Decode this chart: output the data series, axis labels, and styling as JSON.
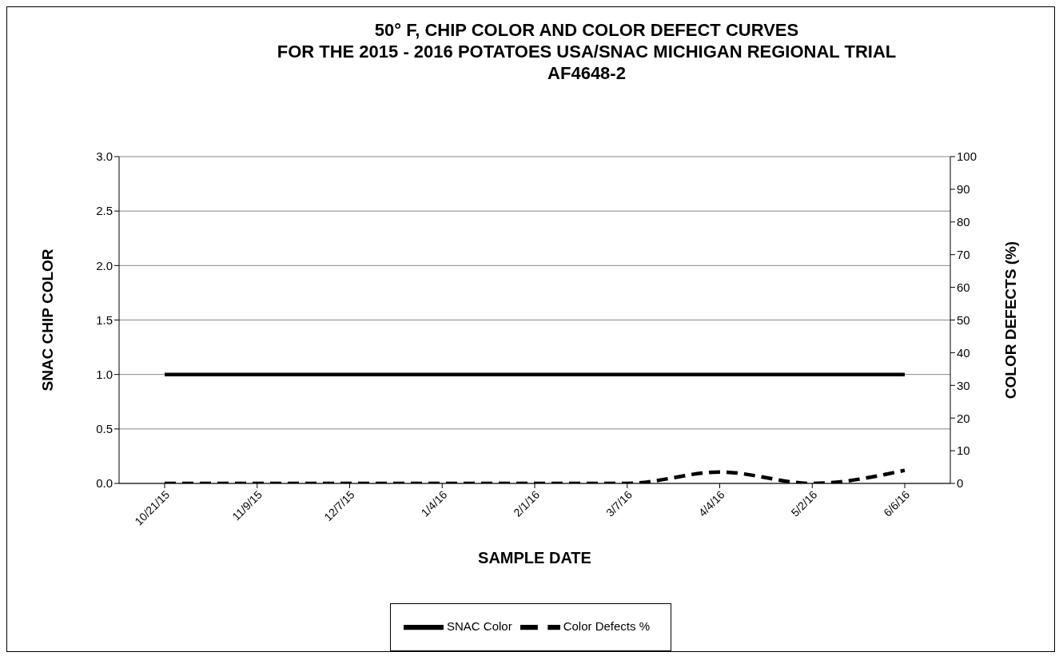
{
  "chart_data": {
    "type": "line",
    "title": "50° F, CHIP COLOR AND COLOR DEFECT CURVES\nFOR THE 2015 - 2016 POTATOES USA/SNAC MICHIGAN REGIONAL TRIAL\nAF4648-2",
    "xlabel": "SAMPLE DATE",
    "ylabel": "SNAC CHIP COLOR",
    "y2label": "COLOR DEFECTS (%)",
    "categories": [
      "10/21/15",
      "11/9/15",
      "12/7/15",
      "1/4/16",
      "2/1/16",
      "3/7/16",
      "4/4/16",
      "5/2/16",
      "6/6/16"
    ],
    "series": [
      {
        "name": "SNAC Color",
        "color": "#000000",
        "line_style": "solid",
        "values": [
          1,
          1,
          1,
          1,
          1,
          1,
          1,
          1,
          1
        ]
      },
      {
        "name": "Color Defects %",
        "color": "#000000",
        "line_style": "dashed",
        "axis": "y2",
        "values": [
          0,
          0,
          0,
          0,
          0,
          0,
          3.5,
          0,
          4
        ]
      }
    ],
    "ylim": [
      0,
      3
    ],
    "yticks": [
      {
        "value": 0,
        "label": "0.0"
      },
      0.5,
      {
        "value": 1,
        "label": "1.0"
      },
      1.5,
      {
        "value": 2,
        "label": "2.0"
      },
      2.5,
      {
        "value": 3,
        "label": "3.0"
      }
    ],
    "y2lim": [
      0,
      100
    ],
    "y2ticks": [
      0,
      10,
      20,
      30,
      40,
      50,
      60,
      70,
      80,
      90,
      100
    ],
    "grid": "y",
    "legend": "bottom",
    "marker": "none"
  }
}
